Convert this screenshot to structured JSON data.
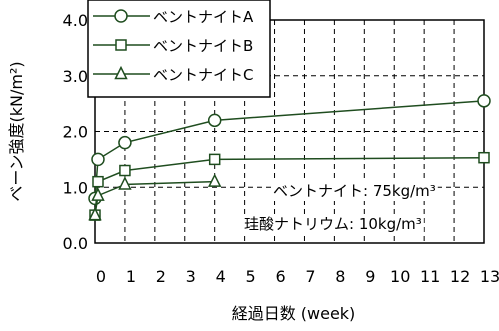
{
  "chart_data": {
    "type": "line",
    "ylabel": "ベーン強度(kN/m²)",
    "xlabel": "経過日数 (week)",
    "x_ticks": [
      0,
      1,
      2,
      3,
      4,
      5,
      6,
      7,
      8,
      9,
      10,
      11,
      12,
      13
    ],
    "y_ticks": [
      "0.0",
      "1.0",
      "2.0",
      "3.0",
      "4.0"
    ],
    "ylim": [
      0,
      4
    ],
    "xlim": [
      0,
      13
    ],
    "grid": "dashed",
    "legend_position": "top-left",
    "series": [
      {
        "name": "ベントナイトA",
        "marker": "circle",
        "x": [
          0,
          0.1,
          1,
          4,
          13
        ],
        "y": [
          0.8,
          1.5,
          1.8,
          2.2,
          2.55
        ]
      },
      {
        "name": "ベントナイトB",
        "marker": "square",
        "x": [
          0,
          0.1,
          1,
          4,
          13
        ],
        "y": [
          0.5,
          1.1,
          1.3,
          1.5,
          1.53
        ]
      },
      {
        "name": "ベントナイトC",
        "marker": "triangle",
        "x": [
          0,
          0.1,
          1,
          4
        ],
        "y": [
          0.5,
          0.85,
          1.05,
          1.1
        ]
      }
    ],
    "annotations": [
      "ベントナイト: 75kg/m³",
      "珪酸ナトリウム: 10kg/m³"
    ],
    "series_color": "#1f4d1f"
  }
}
